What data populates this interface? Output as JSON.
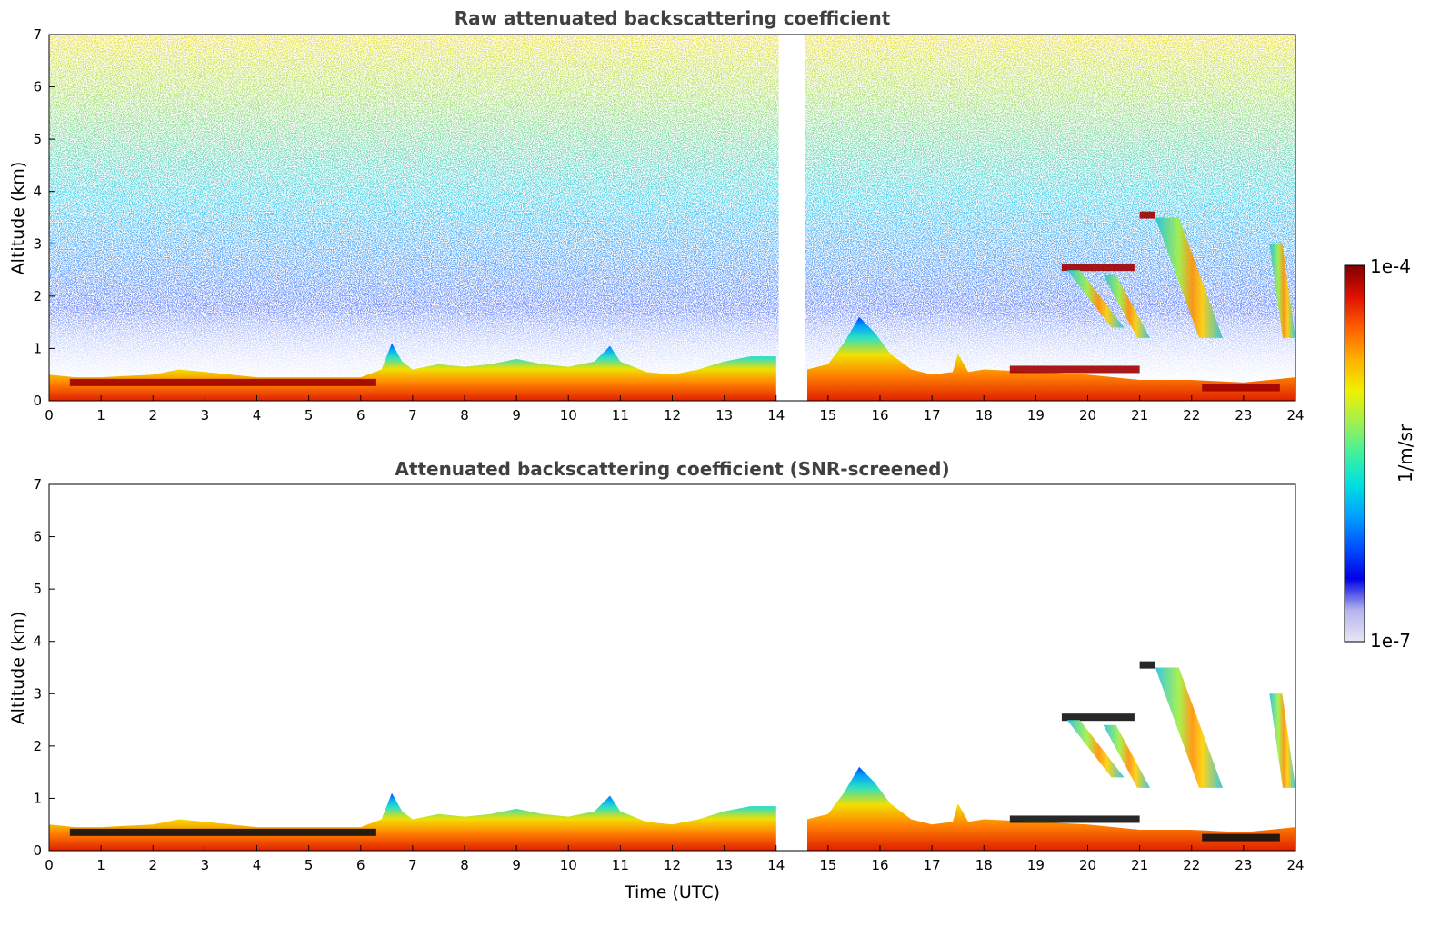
{
  "chart_data": [
    {
      "type": "heatmap",
      "title": "Raw attenuated backscattering coefficient",
      "xlabel": "",
      "ylabel": "Altitude (km)",
      "xlim": [
        0,
        24
      ],
      "ylim": [
        0,
        7
      ],
      "x_ticks": [
        "0",
        "1",
        "2",
        "3",
        "4",
        "5",
        "6",
        "7",
        "8",
        "9",
        "10",
        "11",
        "12",
        "13",
        "14",
        "15",
        "16",
        "17",
        "18",
        "19",
        "20",
        "21",
        "22",
        "23",
        "24"
      ],
      "y_ticks": [
        "0",
        "1",
        "2",
        "3",
        "4",
        "5",
        "6",
        "7"
      ],
      "data_gap_hours": [
        14.05,
        14.55
      ],
      "features": {
        "noise_region_top_km": 7,
        "boundary_layer_top_km": [
          [
            0,
            0.5
          ],
          [
            0.5,
            0.45
          ],
          [
            1,
            0.45
          ],
          [
            2,
            0.5
          ],
          [
            2.5,
            0.6
          ],
          [
            3,
            0.55
          ],
          [
            4,
            0.45
          ],
          [
            5,
            0.45
          ],
          [
            6,
            0.45
          ],
          [
            6.4,
            0.6
          ],
          [
            6.6,
            1.1
          ],
          [
            6.8,
            0.75
          ],
          [
            7,
            0.6
          ],
          [
            7.5,
            0.7
          ],
          [
            8,
            0.65
          ],
          [
            8.5,
            0.7
          ],
          [
            9,
            0.8
          ],
          [
            9.5,
            0.7
          ],
          [
            10,
            0.65
          ],
          [
            10.5,
            0.75
          ],
          [
            10.8,
            1.05
          ],
          [
            11,
            0.75
          ],
          [
            11.5,
            0.55
          ],
          [
            12,
            0.5
          ],
          [
            12.5,
            0.6
          ],
          [
            13,
            0.75
          ],
          [
            13.5,
            0.85
          ],
          [
            14,
            0.85
          ],
          [
            14.6,
            0.6
          ],
          [
            15,
            0.7
          ],
          [
            15.3,
            1.1
          ],
          [
            15.6,
            1.6
          ],
          [
            15.9,
            1.3
          ],
          [
            16.2,
            0.9
          ],
          [
            16.6,
            0.6
          ],
          [
            17,
            0.5
          ],
          [
            17.4,
            0.55
          ],
          [
            17.5,
            0.9
          ],
          [
            17.7,
            0.55
          ],
          [
            18,
            0.6
          ],
          [
            19,
            0.55
          ],
          [
            20,
            0.5
          ],
          [
            21,
            0.4
          ],
          [
            22,
            0.4
          ],
          [
            23,
            0.35
          ],
          [
            24,
            0.45
          ]
        ],
        "cloud_layers": [
          {
            "x": [
              0.4,
              6.3
            ],
            "y_km": 0.35
          },
          {
            "x": [
              19.5,
              20.9
            ],
            "y_km": 2.55
          },
          {
            "x": [
              21.0,
              21.3
            ],
            "y_km": 3.55
          },
          {
            "x": [
              18.5,
              21.0
            ],
            "y_km": 0.6
          },
          {
            "x": [
              22.2,
              23.7
            ],
            "y_km": 0.25
          }
        ],
        "fallstreaks": [
          {
            "x": [
              21.3,
              22.6
            ],
            "y_km": [
              3.5,
              1.2
            ]
          },
          {
            "x": [
              23.5,
              24
            ],
            "y_km": [
              3.0,
              1.2
            ]
          },
          {
            "x": [
              19.6,
              20.7
            ],
            "y_km": [
              2.5,
              1.4
            ]
          },
          {
            "x": [
              20.3,
              21.2
            ],
            "y_km": [
              2.4,
              1.2
            ]
          }
        ]
      }
    },
    {
      "type": "heatmap",
      "title": "Attenuated backscattering coefficient (SNR-screened)",
      "xlabel": "Time (UTC)",
      "ylabel": "Altitude (km)",
      "xlim": [
        0,
        24
      ],
      "ylim": [
        0,
        7
      ],
      "x_ticks": [
        "0",
        "1",
        "2",
        "3",
        "4",
        "5",
        "6",
        "7",
        "8",
        "9",
        "10",
        "11",
        "12",
        "13",
        "14",
        "15",
        "16",
        "17",
        "18",
        "19",
        "20",
        "21",
        "22",
        "23",
        "24"
      ],
      "y_ticks": [
        "0",
        "1",
        "2",
        "3",
        "4",
        "5",
        "6",
        "7"
      ],
      "data_gap_hours": [
        14.05,
        14.55
      ]
    }
  ],
  "colorbar": {
    "max_label": "1e-4",
    "min_label": "1e-7",
    "unit_label": "1/m/sr",
    "scale": "log",
    "colors": [
      "#e6e6f5",
      "#b4b4ee",
      "#0000e6",
      "#0050ff",
      "#00a0ff",
      "#00e0e0",
      "#40f0a0",
      "#a0f050",
      "#f0f000",
      "#ffb000",
      "#ff6000",
      "#e01000",
      "#800000"
    ]
  }
}
